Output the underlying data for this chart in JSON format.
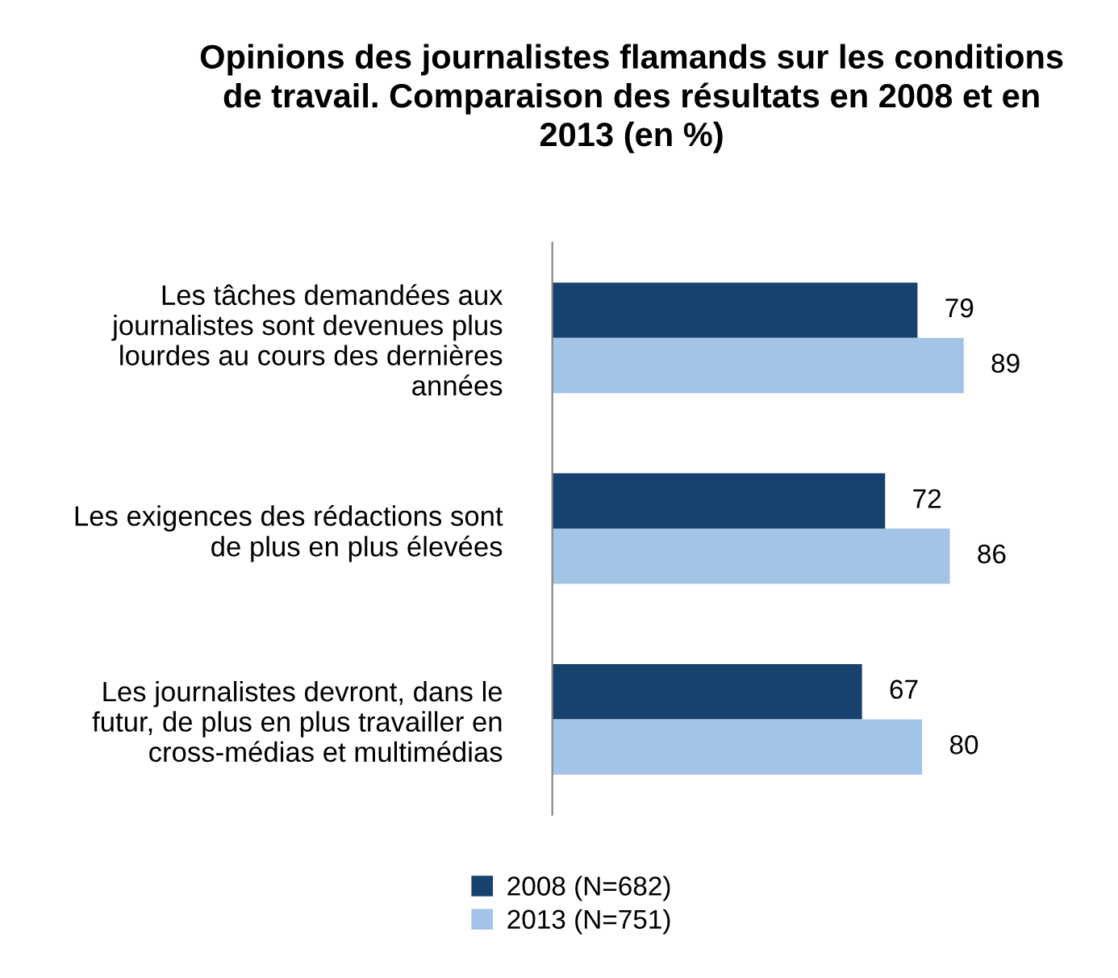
{
  "chart_data": {
    "type": "bar",
    "orientation": "horizontal",
    "title": "Opinions des journalistes flamands sur les conditions\nde travail. Comparaison des résultats en 2008 et en\n2013 (en %)",
    "categories": [
      "Les tâches demandées aux\njournalistes sont devenues plus\nlourdes au cours des dernières\nannées",
      "Les exigences des rédactions sont\nde plus en plus élevées",
      "Les journalistes devront, dans le\nfutur, de plus en plus travailler en\ncross-médias et multimédias"
    ],
    "series": [
      {
        "name": "2008 (N=682)",
        "color": "#17426e",
        "values": [
          79,
          72,
          67
        ]
      },
      {
        "name": "2013 (N=751)",
        "color": "#a3c3e7",
        "values": [
          89,
          86,
          80
        ]
      }
    ],
    "data_labels": true,
    "legend": "bottom left",
    "grid": false
  }
}
